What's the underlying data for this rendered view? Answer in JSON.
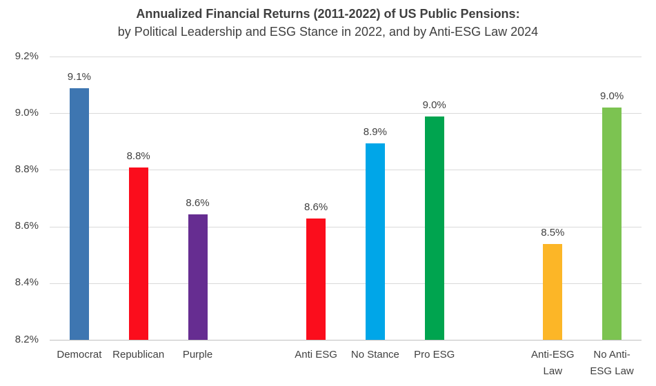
{
  "chart_data": {
    "type": "bar",
    "title": "Annualized Financial Returns (2011-2022) of US Public Pensions:",
    "subtitle": "by Political Leadership and ESG Stance in 2022, and by Anti-ESG Law 2024",
    "ylabel": "",
    "xlabel": "",
    "ylim": [
      8.2,
      9.2
    ],
    "grid": true,
    "legend": false,
    "yticks": [
      {
        "value": 9.2,
        "label": "9.2%"
      },
      {
        "value": 9.0,
        "label": "9.0%"
      },
      {
        "value": 8.8,
        "label": "8.8%"
      },
      {
        "value": 8.6,
        "label": "8.6%"
      },
      {
        "value": 8.4,
        "label": "8.4%"
      },
      {
        "value": 8.2,
        "label": "8.2%"
      }
    ],
    "total_slots": 10,
    "bars": [
      {
        "category": "Democrat",
        "slot": 0,
        "value": 9.09,
        "data_label": "9.1%",
        "color": "#3e76b1"
      },
      {
        "category": "Republican",
        "slot": 1,
        "value": 8.81,
        "data_label": "8.8%",
        "color": "#fb0d1c"
      },
      {
        "category": "Purple",
        "slot": 2,
        "value": 8.645,
        "data_label": "8.6%",
        "color": "#662d91"
      },
      {
        "category": "Anti ESG",
        "slot": 4,
        "value": 8.63,
        "data_label": "8.6%",
        "color": "#fb0d1c"
      },
      {
        "category": "No Stance",
        "slot": 5,
        "value": 8.895,
        "data_label": "8.9%",
        "color": "#00a6e8"
      },
      {
        "category": "Pro ESG",
        "slot": 6,
        "value": 8.99,
        "data_label": "9.0%",
        "color": "#00a44f"
      },
      {
        "category": "Anti-ESG\nLaw",
        "slot": 8,
        "value": 8.54,
        "data_label": "8.5%",
        "color": "#fcb627"
      },
      {
        "category": "No Anti-\nESG Law",
        "slot": 9,
        "value": 9.02,
        "data_label": "9.0%",
        "color": "#7cc351"
      }
    ],
    "groups": [
      {
        "name": "Political Leadership",
        "categories": [
          "Democrat",
          "Republican",
          "Purple"
        ]
      },
      {
        "name": "ESG Stance in 2022",
        "categories": [
          "Anti ESG",
          "No Stance",
          "Pro ESG"
        ]
      },
      {
        "name": "Anti-ESG Law 2024",
        "categories": [
          "Anti-ESG Law",
          "No Anti-ESG Law"
        ]
      }
    ],
    "colors": {
      "gridline": "#d9d9d9",
      "axis_line": "#bfbfbf",
      "text": "#404040"
    }
  }
}
